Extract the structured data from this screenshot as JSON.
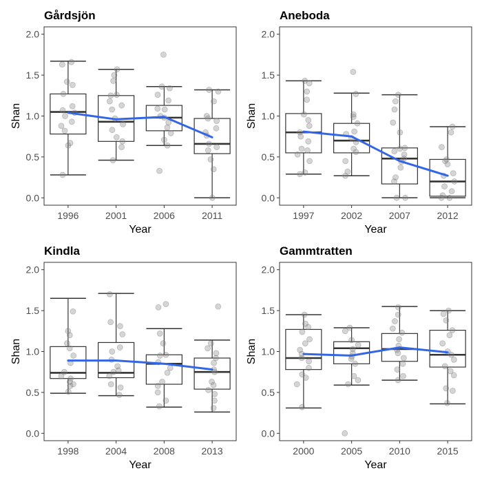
{
  "chart_data": [
    {
      "type": "box",
      "title": "Gårdsjön",
      "xlabel": "Year",
      "ylabel": "Shan",
      "ylim": [
        0,
        2
      ],
      "y_ticks": [
        "0.0",
        "0.5",
        "1.0",
        "1.5",
        "2.0"
      ],
      "categories": [
        "1996",
        "2001",
        "2006",
        "2011"
      ],
      "boxes": [
        {
          "min": 0.28,
          "q1": 0.78,
          "median": 1.05,
          "q3": 1.27,
          "max": 1.67
        },
        {
          "min": 0.46,
          "q1": 0.69,
          "median": 0.93,
          "q3": 1.25,
          "max": 1.57
        },
        {
          "min": 0.64,
          "q1": 0.82,
          "median": 0.98,
          "q3": 1.13,
          "max": 1.36
        },
        {
          "min": 0.0,
          "q1": 0.54,
          "median": 0.66,
          "q3": 0.97,
          "max": 1.32
        }
      ],
      "trend": [
        1.04,
        0.96,
        0.99,
        0.74
      ],
      "points": [
        [
          1.66,
          1.63,
          1.42,
          1.38,
          1.27,
          1.12,
          1.07,
          1.04,
          1.0,
          0.93,
          0.88,
          0.82,
          0.67,
          0.64,
          0.28
        ],
        [
          1.57,
          1.5,
          1.43,
          1.26,
          1.25,
          1.18,
          1.13,
          1.08,
          0.97,
          0.9,
          0.83,
          0.74,
          0.69,
          0.62,
          0.46
        ],
        [
          1.75,
          1.36,
          1.34,
          1.26,
          1.19,
          1.09,
          1.08,
          1.0,
          0.98,
          0.92,
          0.86,
          0.79,
          0.71,
          0.64,
          0.33
        ],
        [
          1.32,
          1.3,
          1.18,
          1.0,
          0.97,
          0.94,
          0.85,
          0.8,
          0.76,
          0.66,
          0.62,
          0.58,
          0.47,
          0.35,
          0.0
        ]
      ]
    },
    {
      "type": "box",
      "title": "Aneboda",
      "xlabel": "Year",
      "ylabel": "Shan",
      "ylim": [
        0,
        2
      ],
      "y_ticks": [
        "0.0",
        "0.5",
        "1.0",
        "1.5",
        "2.0"
      ],
      "categories": [
        "1997",
        "2002",
        "2007",
        "2012"
      ],
      "boxes": [
        {
          "min": 0.29,
          "q1": 0.55,
          "median": 0.8,
          "q3": 1.03,
          "max": 1.43
        },
        {
          "min": 0.27,
          "q1": 0.55,
          "median": 0.7,
          "q3": 0.91,
          "max": 1.28
        },
        {
          "min": 0.0,
          "q1": 0.17,
          "median": 0.48,
          "q3": 0.61,
          "max": 1.26
        },
        {
          "min": 0.0,
          "q1": 0.02,
          "median": 0.2,
          "q3": 0.47,
          "max": 0.87
        }
      ],
      "trend": [
        0.81,
        0.75,
        0.45,
        0.27
      ],
      "points": [
        [
          1.43,
          1.4,
          1.3,
          1.2,
          1.02,
          0.95,
          0.88,
          0.8,
          0.75,
          0.69,
          0.6,
          0.58,
          0.53,
          0.45,
          0.31,
          0.29
        ],
        [
          1.54,
          1.27,
          1.02,
          0.99,
          0.91,
          0.81,
          0.78,
          0.73,
          0.68,
          0.6,
          0.56,
          0.45,
          0.32,
          0.27
        ],
        [
          1.26,
          1.18,
          1.08,
          0.92,
          0.8,
          0.61,
          0.6,
          0.57,
          0.53,
          0.48,
          0.44,
          0.37,
          0.25,
          0.2,
          0.0,
          0.0
        ],
        [
          0.87,
          0.8,
          0.62,
          0.47,
          0.45,
          0.41,
          0.3,
          0.27,
          0.2,
          0.14,
          0.08,
          0.03,
          0.0,
          0.0
        ]
      ]
    },
    {
      "type": "box",
      "title": "Kindla",
      "xlabel": "Year",
      "ylabel": "Shan",
      "ylim": [
        0,
        2
      ],
      "y_ticks": [
        "0.0",
        "0.5",
        "1.0",
        "1.5",
        "2.0"
      ],
      "categories": [
        "1998",
        "2004",
        "2008",
        "2013"
      ],
      "boxes": [
        {
          "min": 0.49,
          "q1": 0.67,
          "median": 0.74,
          "q3": 1.06,
          "max": 1.65
        },
        {
          "min": 0.46,
          "q1": 0.68,
          "median": 0.74,
          "q3": 1.11,
          "max": 1.71
        },
        {
          "min": 0.32,
          "q1": 0.6,
          "median": 0.85,
          "q3": 0.96,
          "max": 1.28
        },
        {
          "min": 0.26,
          "q1": 0.54,
          "median": 0.75,
          "q3": 0.92,
          "max": 1.14
        }
      ],
      "trend": [
        0.89,
        0.89,
        0.85,
        0.78
      ],
      "points": [
        [
          1.49,
          1.25,
          1.2,
          1.1,
          1.04,
          0.95,
          0.86,
          0.75,
          0.7,
          0.67,
          0.63,
          0.6,
          0.58,
          0.51
        ],
        [
          1.7,
          1.36,
          1.31,
          1.21,
          1.05,
          1.0,
          0.9,
          0.82,
          0.77,
          0.75,
          0.7,
          0.6,
          0.56,
          0.47
        ],
        [
          1.58,
          1.54,
          1.22,
          1.1,
          0.96,
          0.95,
          0.87,
          0.8,
          0.74,
          0.63,
          0.58,
          0.5,
          0.4,
          0.33
        ],
        [
          1.55,
          1.1,
          1.04,
          0.98,
          0.92,
          0.86,
          0.78,
          0.75,
          0.63,
          0.59,
          0.53,
          0.48,
          0.4,
          0.31
        ]
      ]
    },
    {
      "type": "box",
      "title": "Gammtratten",
      "xlabel": "Year",
      "ylabel": "Shan",
      "ylim": [
        0,
        2
      ],
      "y_ticks": [
        "0.0",
        "0.5",
        "1.0",
        "1.5",
        "2.0"
      ],
      "categories": [
        "2000",
        "2005",
        "2010",
        "2015"
      ],
      "boxes": [
        {
          "min": 0.31,
          "q1": 0.78,
          "median": 0.92,
          "q3": 1.27,
          "max": 1.45
        },
        {
          "min": 0.59,
          "q1": 0.85,
          "median": 1.04,
          "q3": 1.12,
          "max": 1.29
        },
        {
          "min": 0.65,
          "q1": 0.88,
          "median": 1.03,
          "q3": 1.22,
          "max": 1.55
        },
        {
          "min": 0.36,
          "q1": 0.81,
          "median": 0.96,
          "q3": 1.26,
          "max": 1.5
        }
      ],
      "trend": [
        0.97,
        0.95,
        1.05,
        0.99
      ],
      "points": [
        [
          1.45,
          1.34,
          1.3,
          1.24,
          1.15,
          1.1,
          1.02,
          0.97,
          0.92,
          0.88,
          0.8,
          0.72,
          0.68,
          0.6,
          0.32
        ],
        [
          1.29,
          1.25,
          1.14,
          1.08,
          1.03,
          0.98,
          0.94,
          0.91,
          0.85,
          0.7,
          0.65,
          0.6,
          0.0
        ],
        [
          1.54,
          1.45,
          1.37,
          1.28,
          1.23,
          1.15,
          1.07,
          1.02,
          0.98,
          0.92,
          0.85,
          0.78,
          0.7,
          0.65
        ],
        [
          1.5,
          1.46,
          1.38,
          1.26,
          1.2,
          1.1,
          1.0,
          0.96,
          0.9,
          0.82,
          0.76,
          0.71,
          0.55,
          0.52,
          0.37
        ]
      ]
    }
  ],
  "colors": {
    "trend_line": "#3366e6",
    "box_outline": "#333333",
    "points": "#7f7f7f",
    "panel_border": "#333333",
    "tick_text": "#4d4d4d"
  }
}
